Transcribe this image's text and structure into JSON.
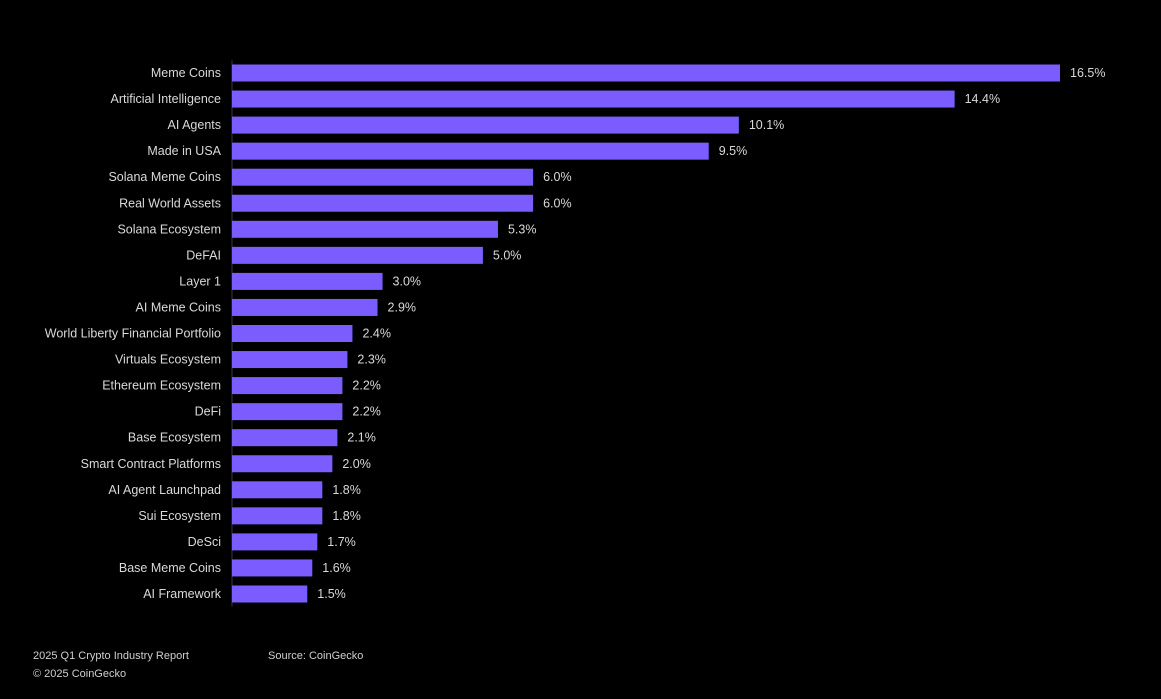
{
  "chart_data": {
    "type": "bar",
    "orientation": "horizontal",
    "categories": [
      "Meme Coins",
      "Artificial Intelligence",
      "AI Agents",
      "Made in USA",
      "Solana Meme Coins",
      "Real World Assets",
      "Solana Ecosystem",
      "DeFAI",
      "Layer 1",
      "AI Meme Coins",
      "World Liberty Financial Portfolio",
      "Virtuals Ecosystem",
      "Ethereum Ecosystem",
      "DeFi",
      "Base Ecosystem",
      "Smart Contract Platforms",
      "AI Agent Launchpad",
      "Sui Ecosystem",
      "DeSci",
      "Base Meme Coins",
      "AI Framework"
    ],
    "values": [
      16.5,
      14.4,
      10.1,
      9.5,
      6.0,
      6.0,
      5.3,
      5.0,
      3.0,
      2.9,
      2.4,
      2.3,
      2.2,
      2.2,
      2.1,
      2.0,
      1.8,
      1.8,
      1.7,
      1.6,
      1.5
    ],
    "value_labels": [
      "16.5%",
      "14.4%",
      "10.1%",
      "9.5%",
      "6.0%",
      "6.0%",
      "5.3%",
      "5.0%",
      "3.0%",
      "2.9%",
      "2.4%",
      "2.3%",
      "2.2%",
      "2.2%",
      "2.1%",
      "2.0%",
      "1.8%",
      "1.8%",
      "1.7%",
      "1.6%",
      "1.5%"
    ],
    "unit": "%",
    "title": "",
    "xlabel": "",
    "ylabel": "",
    "xlim": [
      0,
      16.5
    ],
    "grid": false,
    "legend": "none",
    "bar_color": "#7b5cff",
    "axis_color": "#3a3a3a",
    "background": "#000000"
  },
  "footer": {
    "report": "2025 Q1 Crypto Industry Report",
    "copyright": "© 2025 CoinGecko",
    "source": "Source: CoinGecko"
  }
}
